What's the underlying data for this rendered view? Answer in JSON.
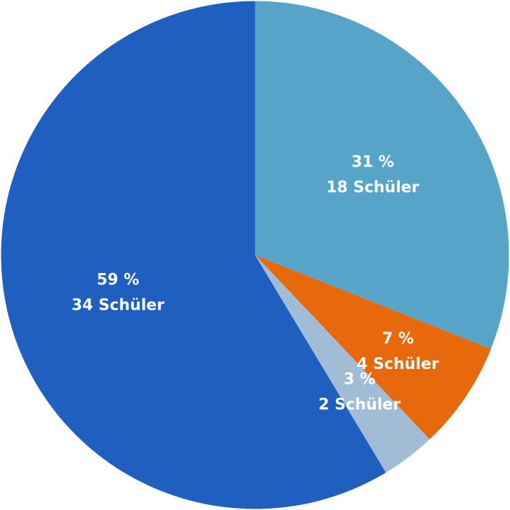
{
  "chart_data": {
    "type": "pie",
    "values": [
      31,
      7,
      3,
      59
    ],
    "value_labels": [
      "31 %",
      "7 %",
      "3 %",
      "59 %"
    ],
    "counts": [
      18,
      4,
      2,
      34
    ],
    "count_labels": [
      "18 Schüler",
      "4 Schüler",
      "2 Schüler",
      "34 Schüler"
    ],
    "colors": [
      "#56a5c9",
      "#e8680c",
      "#a3bcd6",
      "#1f5fbf"
    ]
  }
}
